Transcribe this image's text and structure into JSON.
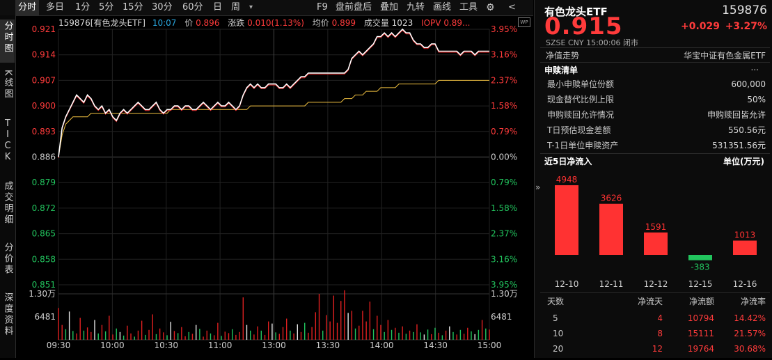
{
  "toolbar": {
    "left": [
      "分时",
      "多日",
      "1分",
      "5分",
      "15分",
      "30分",
      "60分",
      "日",
      "周"
    ],
    "more": "▾",
    "right": [
      "F9",
      "盘前盘后",
      "叠加",
      "九转",
      "画线",
      "工具"
    ],
    "gear": "⚙",
    "back": "<"
  },
  "left_tabs": [
    "分时图",
    "K线图",
    "TICK",
    "成交明细",
    "分价表",
    "深度资料"
  ],
  "info": {
    "code_name": "159876[有色龙头ETF]",
    "time": "10:07",
    "price_label": "价",
    "price": "0.896",
    "chg_label": "涨跌",
    "chg": "0.010(1.13%)",
    "avg_label": "均价",
    "avg": "0.899",
    "vol_label": "成交量",
    "vol": "1023",
    "iopv_label": "IOPV",
    "iopv": "0.89..."
  },
  "chart_data": {
    "type": "line",
    "price_axis": [
      "0.921",
      "0.914",
      "0.907",
      "0.900",
      "0.893",
      "0.886",
      "0.879",
      "0.872",
      "0.865",
      "0.858",
      "0.851"
    ],
    "pct_axis": [
      "3.95%",
      "3.16%",
      "2.37%",
      "1.58%",
      "0.79%",
      "0.00%",
      "0.79%",
      "1.58%",
      "2.37%",
      "3.16%",
      "3.95%"
    ],
    "volume_axis": [
      "1.30万",
      "6481"
    ],
    "time_axis": [
      "09:30",
      "10:00",
      "10:30",
      "11:00",
      "13:00",
      "13:30",
      "14:00",
      "14:30",
      "15:00"
    ],
    "ylim": [
      0.851,
      0.921
    ],
    "prev_close": 0.886,
    "price_series": [
      0.886,
      0.894,
      0.897,
      0.899,
      0.901,
      0.903,
      0.902,
      0.901,
      0.903,
      0.902,
      0.9,
      0.899,
      0.9,
      0.898,
      0.899,
      0.897,
      0.896,
      0.898,
      0.899,
      0.898,
      0.899,
      0.9,
      0.901,
      0.9,
      0.899,
      0.899,
      0.9,
      0.901,
      0.899,
      0.898,
      0.899,
      0.899,
      0.9,
      0.9,
      0.899,
      0.9,
      0.9,
      0.899,
      0.899,
      0.9,
      0.901,
      0.9,
      0.899,
      0.9,
      0.901,
      0.9,
      0.9,
      0.901,
      0.9,
      0.899,
      0.9,
      0.903,
      0.905,
      0.906,
      0.905,
      0.906,
      0.905,
      0.905,
      0.906,
      0.906,
      0.906,
      0.905,
      0.905,
      0.906,
      0.905,
      0.906,
      0.907,
      0.908,
      0.908,
      0.909,
      0.909,
      0.909,
      0.909,
      0.909,
      0.909,
      0.909,
      0.909,
      0.909,
      0.909,
      0.909,
      0.91,
      0.913,
      0.914,
      0.915,
      0.914,
      0.915,
      0.916,
      0.917,
      0.919,
      0.919,
      0.92,
      0.919,
      0.92,
      0.919,
      0.92,
      0.921,
      0.92,
      0.92,
      0.918,
      0.917,
      0.917,
      0.916,
      0.916,
      0.917,
      0.917,
      0.915,
      0.915,
      0.915,
      0.915,
      0.915,
      0.915,
      0.914,
      0.915,
      0.915,
      0.915,
      0.914,
      0.915,
      0.915,
      0.915,
      0.915
    ],
    "avg_series": [
      0.886,
      0.892,
      0.895,
      0.896,
      0.897,
      0.897,
      0.897,
      0.897,
      0.897,
      0.898,
      0.898,
      0.898,
      0.898,
      0.898,
      0.898,
      0.898,
      0.898,
      0.898,
      0.898,
      0.898,
      0.898,
      0.898,
      0.898,
      0.898,
      0.898,
      0.898,
      0.898,
      0.898,
      0.898,
      0.898,
      0.898,
      0.899,
      0.899,
      0.899,
      0.899,
      0.899,
      0.899,
      0.899,
      0.899,
      0.899,
      0.899,
      0.899,
      0.899,
      0.899,
      0.899,
      0.899,
      0.899,
      0.899,
      0.899,
      0.899,
      0.899,
      0.899,
      0.899,
      0.9,
      0.9,
      0.9,
      0.9,
      0.9,
      0.9,
      0.9,
      0.9,
      0.9,
      0.9,
      0.9,
      0.9,
      0.9,
      0.9,
      0.9,
      0.9,
      0.901,
      0.901,
      0.901,
      0.901,
      0.901,
      0.901,
      0.901,
      0.901,
      0.901,
      0.901,
      0.902,
      0.902,
      0.902,
      0.903,
      0.903,
      0.903,
      0.904,
      0.904,
      0.904,
      0.904,
      0.905,
      0.905,
      0.905,
      0.905,
      0.905,
      0.906,
      0.906,
      0.906,
      0.906,
      0.906,
      0.906,
      0.906,
      0.906,
      0.906,
      0.906,
      0.906,
      0.907,
      0.907,
      0.907,
      0.907,
      0.907,
      0.907,
      0.907,
      0.907,
      0.907,
      0.907,
      0.907,
      0.907,
      0.907,
      0.907,
      0.907
    ],
    "volume_series": [
      9000,
      4200,
      3000,
      8000,
      2500,
      1800,
      6200,
      2600,
      3500,
      2200,
      5600,
      1800,
      4200,
      2400,
      6800,
      1500,
      3200,
      2200,
      1200,
      4000,
      1800,
      900,
      2600,
      5400,
      1400,
      2800,
      7200,
      1600,
      3200,
      2100,
      1300,
      5100,
      2500,
      1900,
      3600,
      1000,
      2200,
      1700,
      4200,
      3100,
      900,
      2600,
      1800,
      1300,
      4800,
      1100,
      2300,
      1900,
      3000,
      1400,
      2200,
      12000,
      4200,
      2600,
      1500,
      3800,
      2600,
      1400,
      5200,
      4600,
      2100,
      1700,
      3600,
      6000,
      2600,
      1800,
      4400,
      2200,
      4800,
      2000,
      3600,
      7800,
      13000,
      2600,
      7000,
      5200,
      12500,
      4800,
      11000,
      14000,
      7600,
      8200,
      3200,
      4000,
      8200,
      5200,
      10800,
      3000,
      6800,
      4200,
      2200,
      5600,
      2800,
      3400,
      2000,
      3800,
      1700,
      2600,
      2200,
      4400,
      2100,
      1500,
      2900,
      1600,
      3400,
      2000,
      1300,
      2600,
      3800,
      2200,
      1500,
      2800,
      1700,
      3400,
      2400,
      1600,
      2800,
      5600,
      3200,
      2900
    ],
    "volume_up": [
      1,
      1,
      0,
      1,
      0,
      1,
      1,
      0,
      1,
      1,
      1,
      0,
      1,
      0,
      1,
      1,
      0,
      1,
      0,
      1,
      1,
      0,
      1,
      1,
      0,
      1,
      1,
      0,
      1,
      1,
      0,
      1,
      1,
      0,
      1,
      1,
      0,
      1,
      1,
      0,
      1,
      1,
      0,
      1,
      1,
      0,
      1,
      1,
      0,
      1,
      1,
      1,
      1,
      0,
      1,
      1,
      0,
      1,
      1,
      1,
      0,
      1,
      1,
      1,
      0,
      1,
      1,
      1,
      0,
      1,
      1,
      1,
      1,
      0,
      1,
      1,
      1,
      1,
      1,
      1,
      1,
      1,
      0,
      1,
      1,
      1,
      1,
      0,
      1,
      1,
      0,
      1,
      0,
      1,
      0,
      1,
      0,
      1,
      0,
      1,
      0,
      1,
      0,
      1,
      0,
      1,
      0,
      1,
      1,
      0,
      1,
      0,
      1,
      1,
      0,
      1,
      0,
      1,
      0,
      1
    ],
    "volume_colors": [
      "#e02020",
      "#e6e6e6",
      "#22c55e"
    ]
  },
  "etf": {
    "name": "有色龙头ETF",
    "code": "159876",
    "price": "0.915",
    "change": "+0.029",
    "change_pct": "+3.27%",
    "meta": "SZSE  CNY  15:00:06  闭市",
    "nav_label": "净值走势",
    "index_name": "华宝中证有色金属ETF"
  },
  "subscription": {
    "title": "申赎清单",
    "more": "...",
    "rows": [
      {
        "k": "最小申赎单位份额",
        "v": "600,000"
      },
      {
        "k": "现金替代比例上限",
        "v": "50%"
      },
      {
        "k": "申购赎回允许情况",
        "v": "申购赎回皆允许"
      },
      {
        "k": "T日预估现金差额",
        "v": "550.56元"
      },
      {
        "k": "T-1日单位申赎资产",
        "v": "531351.56元"
      }
    ]
  },
  "inflow": {
    "title": "近5日净流入",
    "unit": "单位(万元)",
    "chart_data": {
      "type": "bar",
      "categories": [
        "12-10",
        "12-11",
        "12-12",
        "12-15",
        "12-16"
      ],
      "values": [
        4948,
        3626,
        1591,
        -383,
        1013
      ],
      "labels": [
        "4948",
        "3626",
        "1591",
        "-383",
        "1013"
      ]
    }
  },
  "flow_table": {
    "headers": [
      "天数",
      "净流天",
      "净流额",
      "净流率"
    ],
    "rows": [
      [
        "5",
        "4",
        "10794",
        "14.42%"
      ],
      [
        "10",
        "8",
        "15111",
        "21.57%"
      ],
      [
        "20",
        "12",
        "19764",
        "30.68%"
      ]
    ]
  },
  "colors": {
    "up": "#ff3b3b",
    "down": "#22c55e",
    "price_line": "#ffffff",
    "avg_line": "#f0c040",
    "pos_bar": "#ff3232",
    "neg_bar": "#22c55e"
  }
}
